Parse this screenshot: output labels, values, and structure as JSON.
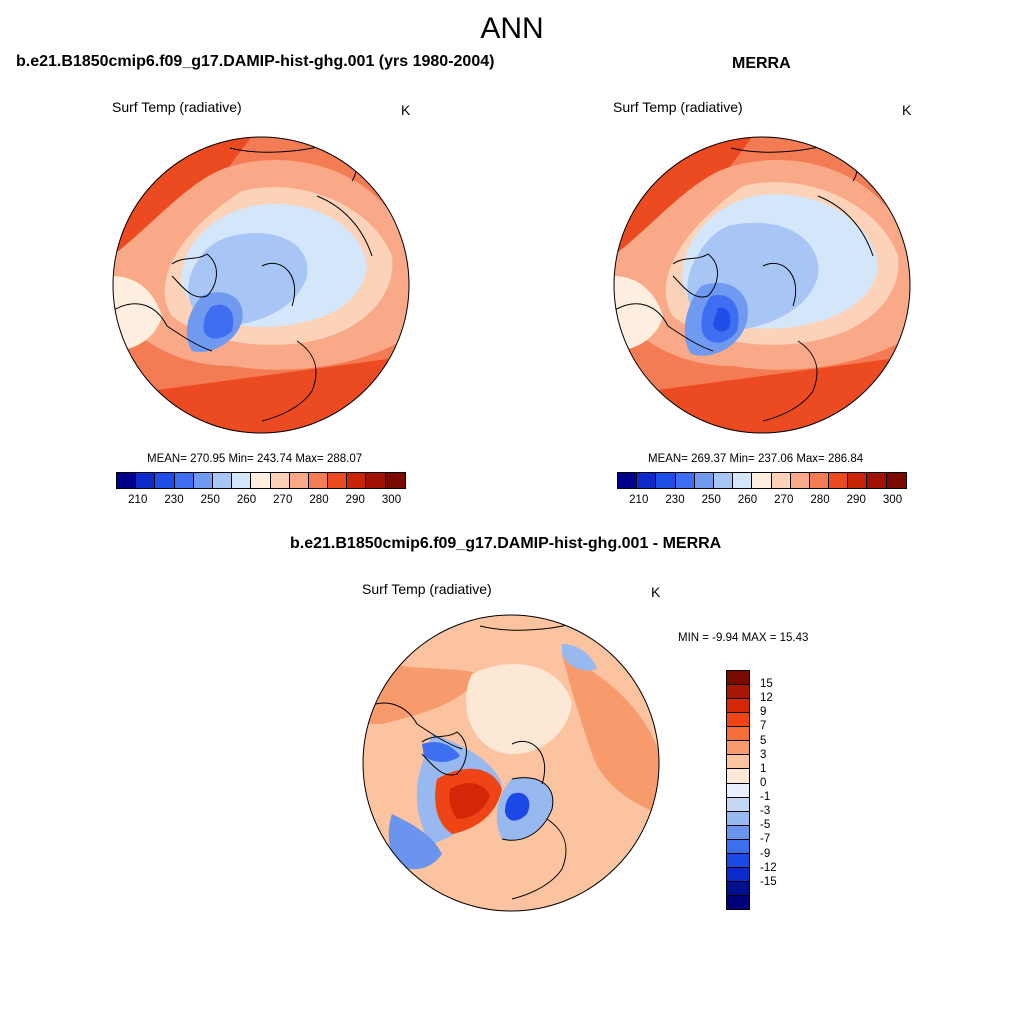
{
  "figure": {
    "title": "ANN"
  },
  "colors": {
    "abs_levels": [
      "#00008b",
      "#0c2ac8",
      "#1f4ee6",
      "#3f6ef2",
      "#6f9af0",
      "#a8c6f5",
      "#d3e6fa",
      "#fdeee0",
      "#fcd3b8",
      "#f9a988",
      "#f47c55",
      "#ec4a20",
      "#c82408",
      "#a01104",
      "#780a00"
    ],
    "diff_levels": [
      "#780a00",
      "#a81604",
      "#d32708",
      "#ef4416",
      "#f56e3a",
      "#f79a6c",
      "#fbc39f",
      "#fde7d5",
      "#e7f0fb",
      "#c4d8f5",
      "#98b8f0",
      "#6a94ee",
      "#3e6ff0",
      "#1c49e6",
      "#0a2acb",
      "#00118f",
      "#00007a"
    ],
    "ocean_warm": "#f27a52",
    "land_outline": "#000000"
  },
  "panels": {
    "model": {
      "title": "b.e21.B1850cmip6.f09_g17.DAMIP-hist-ghg.001 (yrs 1980-2004)",
      "variable": "Surf Temp (radiative)",
      "units": "K",
      "stats": "MEAN= 270.95  Min= 243.74  Max= 288.07",
      "colorbar_ticks": [
        "210",
        "230",
        "250",
        "260",
        "270",
        "280",
        "290",
        "300"
      ]
    },
    "obs": {
      "title": "MERRA",
      "variable": "Surf Temp (radiative)",
      "units": "K",
      "stats": "MEAN= 269.37  Min= 237.06  Max= 286.84",
      "colorbar_ticks": [
        "210",
        "230",
        "250",
        "260",
        "270",
        "280",
        "290",
        "300"
      ]
    },
    "diff": {
      "title": "b.e21.B1850cmip6.f09_g17.DAMIP-hist-ghg.001 - MERRA",
      "variable": "Surf Temp (radiative)",
      "units": "K",
      "stats": "MIN =  -9.94 MAX =  15.43",
      "colorbar_ticks": [
        "15",
        "12",
        "9",
        "7",
        "5",
        "3",
        "1",
        "0",
        "-1",
        "-3",
        "-5",
        "-7",
        "-9",
        "-12",
        "-15"
      ]
    }
  },
  "chart_data": [
    {
      "type": "heatmap",
      "projection": "north polar stereographic",
      "title": "b.e21.B1850cmip6.f09_g17.DAMIP-hist-ghg.001 (yrs 1980-2004)",
      "variable": "Surf Temp (radiative)",
      "units": "K",
      "mean": 270.95,
      "min": 243.74,
      "max": 288.07,
      "levels": [
        210,
        230,
        250,
        260,
        270,
        280,
        290,
        300
      ]
    },
    {
      "type": "heatmap",
      "projection": "north polar stereographic",
      "title": "MERRA",
      "variable": "Surf Temp (radiative)",
      "units": "K",
      "mean": 269.37,
      "min": 237.06,
      "max": 286.84,
      "levels": [
        210,
        230,
        250,
        260,
        270,
        280,
        290,
        300
      ]
    },
    {
      "type": "heatmap",
      "projection": "north polar stereographic",
      "title": "b.e21.B1850cmip6.f09_g17.DAMIP-hist-ghg.001 - MERRA",
      "variable": "Surf Temp (radiative)",
      "units": "K",
      "min": -9.94,
      "max": 15.43,
      "levels": [
        15,
        12,
        9,
        7,
        5,
        3,
        1,
        0,
        -1,
        -3,
        -5,
        -7,
        -9,
        -12,
        -15
      ]
    }
  ]
}
